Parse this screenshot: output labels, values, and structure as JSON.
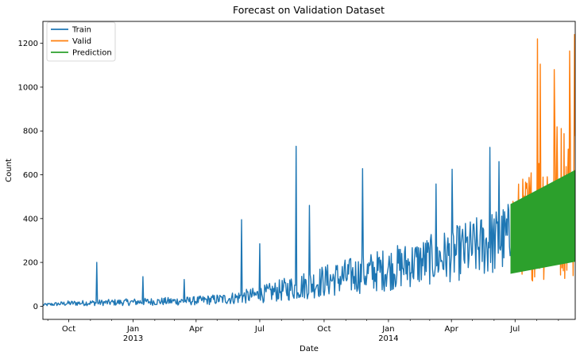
{
  "chart_data": {
    "type": "line",
    "title": "Forecast on Validation Dataset",
    "xlabel": "Date",
    "ylabel": "Count",
    "xlim": [
      "2012-08-25",
      "2014-09-25"
    ],
    "ylim": [
      -60,
      1300
    ],
    "grid": false,
    "legend_position": "top-left",
    "y_ticks": [
      0,
      200,
      400,
      600,
      800,
      1000,
      1200
    ],
    "x_ticks": [
      {
        "date": "2012-10-01",
        "label": "Oct",
        "sublabel": ""
      },
      {
        "date": "2013-01-01",
        "label": "Jan",
        "sublabel": "2013"
      },
      {
        "date": "2013-04-01",
        "label": "Apr",
        "sublabel": ""
      },
      {
        "date": "2013-07-01",
        "label": "Jul",
        "sublabel": ""
      },
      {
        "date": "2013-10-01",
        "label": "Oct",
        "sublabel": ""
      },
      {
        "date": "2014-01-01",
        "label": "Jan",
        "sublabel": "2014"
      },
      {
        "date": "2014-04-01",
        "label": "Apr",
        "sublabel": ""
      },
      {
        "date": "2014-07-01",
        "label": "Jul",
        "sublabel": ""
      }
    ],
    "x_minor_ticks": [
      "2012-09-01",
      "2012-11-01",
      "2012-12-01",
      "2013-02-01",
      "2013-03-01",
      "2013-05-01",
      "2013-06-01",
      "2013-08-01",
      "2013-09-01",
      "2013-11-01",
      "2013-12-01",
      "2014-02-01",
      "2014-03-01",
      "2014-05-01",
      "2014-06-01",
      "2014-08-01",
      "2014-09-01"
    ],
    "series": [
      {
        "name": "Train",
        "color": "#1f77b4",
        "x_start": "2012-08-25",
        "x_end": "2014-06-24",
        "envelope": {
          "dates": [
            "2012-08-25",
            "2012-10-01",
            "2013-01-01",
            "2013-04-01",
            "2013-05-15",
            "2013-07-01",
            "2013-08-15",
            "2013-10-01",
            "2013-11-15",
            "2014-01-01",
            "2014-02-15",
            "2014-04-01",
            "2014-05-15",
            "2014-06-24"
          ],
          "low": [
            0,
            2,
            3,
            5,
            8,
            15,
            25,
            40,
            55,
            70,
            90,
            110,
            130,
            150
          ],
          "high": [
            12,
            25,
            35,
            45,
            60,
            90,
            140,
            190,
            230,
            270,
            310,
            360,
            420,
            480
          ]
        },
        "spikes": [
          {
            "date": "2012-11-10",
            "value": 200
          },
          {
            "date": "2013-01-15",
            "value": 135
          },
          {
            "date": "2013-03-15",
            "value": 122
          },
          {
            "date": "2013-06-05",
            "value": 395
          },
          {
            "date": "2013-07-01",
            "value": 285
          },
          {
            "date": "2013-08-22",
            "value": 730
          },
          {
            "date": "2013-09-10",
            "value": 460
          },
          {
            "date": "2013-11-25",
            "value": 628
          },
          {
            "date": "2014-03-10",
            "value": 558
          },
          {
            "date": "2014-04-02",
            "value": 625
          },
          {
            "date": "2014-05-26",
            "value": 725
          },
          {
            "date": "2014-06-08",
            "value": 660
          }
        ]
      },
      {
        "name": "Valid",
        "color": "#ff7f0e",
        "x_start": "2014-06-25",
        "x_end": "2014-09-25",
        "envelope": {
          "dates": [
            "2014-06-25",
            "2014-07-15",
            "2014-08-05",
            "2014-08-25",
            "2014-09-25"
          ],
          "low": [
            150,
            130,
            100,
            115,
            120
          ],
          "high": [
            560,
            600,
            760,
            860,
            900
          ]
        },
        "spikes": [
          {
            "date": "2014-08-02",
            "value": 1220
          },
          {
            "date": "2014-08-06",
            "value": 1105
          },
          {
            "date": "2014-08-26",
            "value": 1080
          },
          {
            "date": "2014-09-17",
            "value": 1165
          },
          {
            "date": "2014-09-24",
            "value": 1240
          }
        ]
      },
      {
        "name": "Prediction",
        "color": "#2ca02c",
        "x_start": "2014-06-25",
        "x_end": "2014-09-25",
        "envelope": {
          "dates": [
            "2014-06-25",
            "2014-09-25"
          ],
          "low": [
            150,
            205
          ],
          "high": [
            465,
            620
          ]
        }
      }
    ]
  }
}
